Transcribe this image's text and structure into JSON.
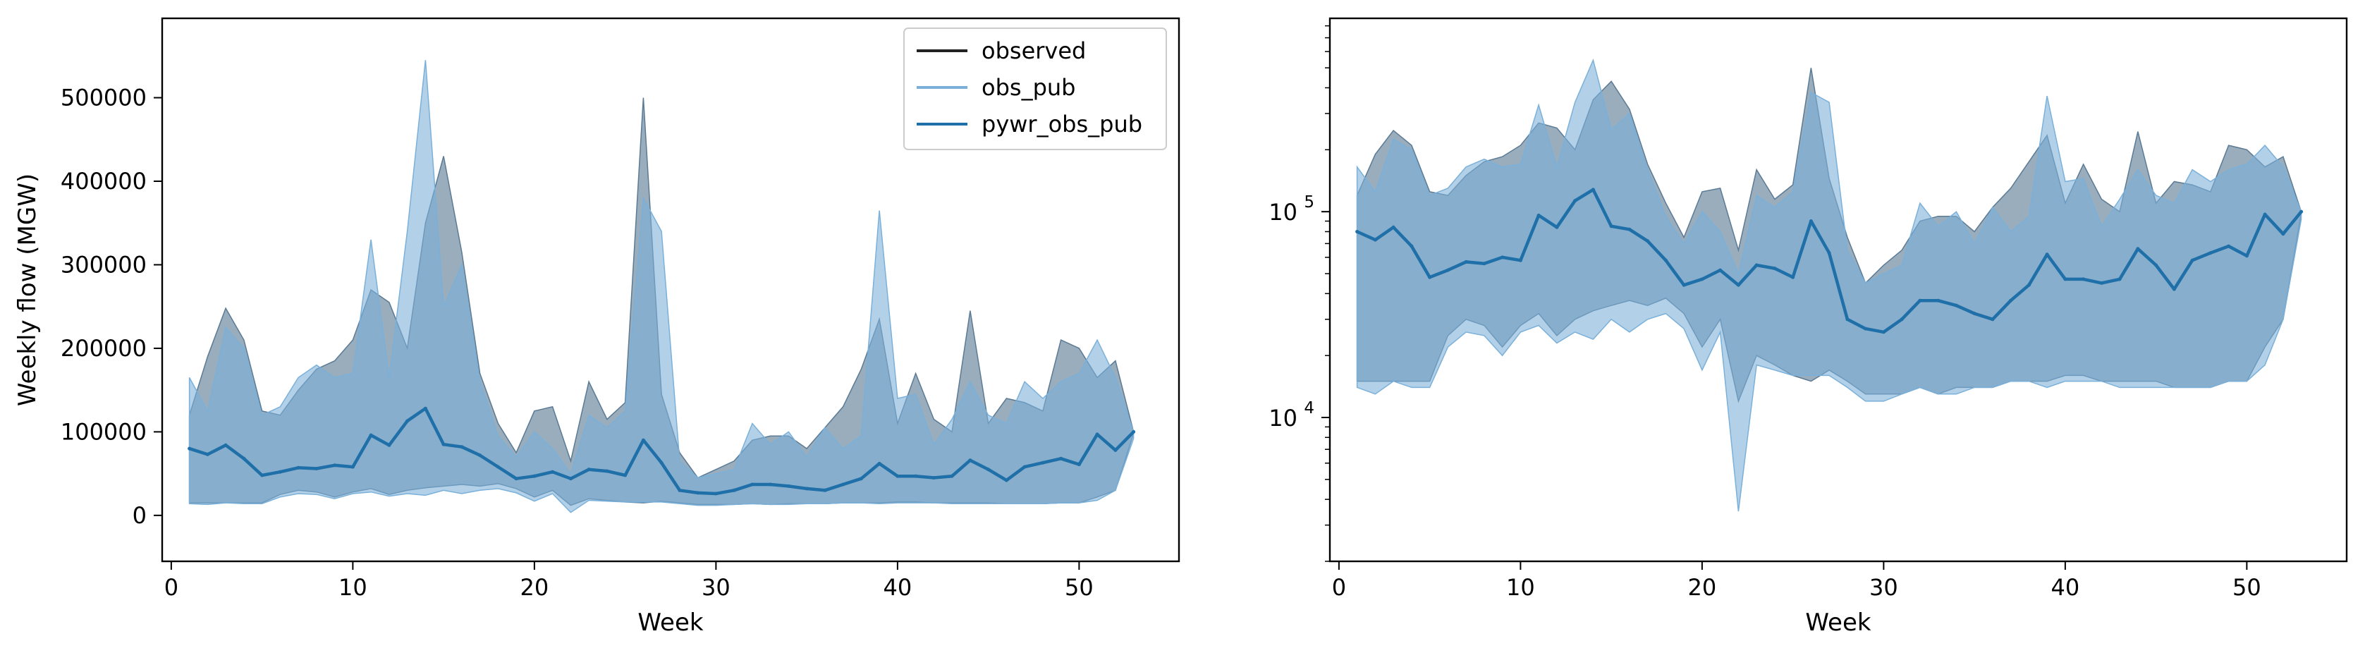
{
  "chart_data": [
    {
      "type": "area",
      "panel": "left",
      "xlabel": "Week",
      "ylabel": "Weekly flow (MGW)",
      "yscale": "linear",
      "xlim": [
        -0.5,
        55.5
      ],
      "ylim": [
        -55000,
        595000
      ],
      "xticks": [
        0,
        10,
        20,
        30,
        40,
        50
      ],
      "xtick_labels": [
        "0",
        "10",
        "20",
        "30",
        "40",
        "50"
      ],
      "yticks": [
        0,
        100000,
        200000,
        300000,
        400000,
        500000
      ],
      "ytick_labels": [
        "0",
        "100000",
        "200000",
        "300000",
        "400000",
        "500000"
      ],
      "legend": {
        "location": "upper right",
        "entries": [
          {
            "label": "observed",
            "color": "#222222"
          },
          {
            "label": "obs_pub",
            "color": "#7ab0d9"
          },
          {
            "label": "pywr_obs_pub",
            "color": "#1f6fa8"
          }
        ]
      },
      "x": [
        1,
        2,
        3,
        4,
        5,
        6,
        7,
        8,
        9,
        10,
        11,
        12,
        13,
        14,
        15,
        16,
        17,
        18,
        19,
        20,
        21,
        22,
        23,
        24,
        25,
        26,
        27,
        28,
        29,
        30,
        31,
        32,
        33,
        34,
        35,
        36,
        37,
        38,
        39,
        40,
        41,
        42,
        43,
        44,
        45,
        46,
        47,
        48,
        49,
        50,
        51,
        52,
        53
      ],
      "series": [
        {
          "name": "observed",
          "style": "range band",
          "color": "#5b7a94",
          "upper": [
            120000,
            190000,
            248000,
            210000,
            125000,
            120000,
            150000,
            175000,
            185000,
            210000,
            270000,
            255000,
            200000,
            350000,
            430000,
            315000,
            170000,
            110000,
            75000,
            125000,
            130000,
            65000,
            160000,
            115000,
            135000,
            500000,
            145000,
            75000,
            45000,
            55000,
            65000,
            90000,
            95000,
            95000,
            80000,
            105000,
            130000,
            175000,
            235000,
            110000,
            170000,
            115000,
            100000,
            245000,
            110000,
            140000,
            135000,
            125000,
            210000,
            200000,
            165000,
            185000,
            100000
          ],
          "lower": [
            15000,
            15000,
            15000,
            15000,
            15000,
            25000,
            30000,
            28000,
            22000,
            28000,
            32000,
            25000,
            30000,
            33000,
            35000,
            37000,
            35000,
            38000,
            32000,
            22000,
            30000,
            12000,
            20000,
            18000,
            16000,
            15000,
            17000,
            15000,
            13000,
            13000,
            13000,
            14000,
            13000,
            14000,
            14000,
            14000,
            15000,
            15000,
            15000,
            16000,
            16000,
            15000,
            15000,
            15000,
            15000,
            14000,
            14000,
            14000,
            15000,
            15000,
            22000,
            30000,
            98000
          ]
        },
        {
          "name": "obs_pub",
          "style": "range band",
          "color": "#7ab0d9",
          "upper": [
            165000,
            125000,
            225000,
            200000,
            120000,
            130000,
            165000,
            180000,
            165000,
            170000,
            330000,
            165000,
            340000,
            545000,
            250000,
            300000,
            160000,
            95000,
            70000,
            100000,
            80000,
            50000,
            120000,
            105000,
            125000,
            380000,
            340000,
            65000,
            45000,
            50000,
            55000,
            110000,
            85000,
            100000,
            70000,
            105000,
            80000,
            95000,
            365000,
            140000,
            145000,
            85000,
            115000,
            160000,
            120000,
            110000,
            160000,
            140000,
            160000,
            170000,
            210000,
            165000,
            100000
          ],
          "lower": [
            14000,
            13000,
            15000,
            14000,
            14000,
            22000,
            26000,
            25000,
            20000,
            26000,
            28000,
            23000,
            26000,
            24000,
            30000,
            26000,
            30000,
            32000,
            27000,
            17000,
            26000,
            3500,
            18000,
            17000,
            16000,
            16000,
            16000,
            14000,
            12000,
            12000,
            13000,
            14000,
            13000,
            13000,
            14000,
            14000,
            15000,
            15000,
            14000,
            15000,
            15000,
            15000,
            14000,
            14000,
            14000,
            14000,
            14000,
            14000,
            15000,
            15000,
            18000,
            30000,
            92000
          ]
        },
        {
          "name": "pywr_obs_pub",
          "style": "line",
          "color": "#1f6fa8",
          "values": [
            80000,
            73000,
            84000,
            68000,
            48000,
            52000,
            57000,
            56000,
            60000,
            58000,
            96000,
            84000,
            113000,
            128000,
            85000,
            82000,
            72000,
            58000,
            44000,
            47000,
            52000,
            44000,
            55000,
            53000,
            48000,
            90000,
            63000,
            30000,
            27000,
            26000,
            30000,
            37000,
            37000,
            35000,
            32000,
            30000,
            37000,
            44000,
            62000,
            47000,
            47000,
            45000,
            47000,
            66000,
            55000,
            42000,
            58000,
            63000,
            68000,
            61000,
            97000,
            78000,
            100000
          ]
        }
      ]
    },
    {
      "type": "area",
      "panel": "right",
      "xlabel": "Week",
      "ylabel": "",
      "yscale": "log",
      "xlim": [
        -0.5,
        55.5
      ],
      "ylim": [
        2000,
        870000
      ],
      "xticks": [
        0,
        10,
        20,
        30,
        40,
        50
      ],
      "xtick_labels": [
        "0",
        "10",
        "20",
        "30",
        "40",
        "50"
      ],
      "yticks": [
        10000,
        100000
      ],
      "ytick_labels": [
        {
          "base": "10",
          "exp": "4"
        },
        {
          "base": "10",
          "exp": "5"
        }
      ],
      "x": [
        1,
        2,
        3,
        4,
        5,
        6,
        7,
        8,
        9,
        10,
        11,
        12,
        13,
        14,
        15,
        16,
        17,
        18,
        19,
        20,
        21,
        22,
        23,
        24,
        25,
        26,
        27,
        28,
        29,
        30,
        31,
        32,
        33,
        34,
        35,
        36,
        37,
        38,
        39,
        40,
        41,
        42,
        43,
        44,
        45,
        46,
        47,
        48,
        49,
        50,
        51,
        52,
        53
      ],
      "series": [
        {
          "name": "observed",
          "style": "range band",
          "color": "#5b7a94",
          "upper": [
            120000,
            190000,
            248000,
            210000,
            125000,
            120000,
            150000,
            175000,
            185000,
            210000,
            270000,
            255000,
            200000,
            350000,
            430000,
            315000,
            170000,
            110000,
            75000,
            125000,
            130000,
            65000,
            160000,
            115000,
            135000,
            500000,
            145000,
            75000,
            45000,
            55000,
            65000,
            90000,
            95000,
            95000,
            80000,
            105000,
            130000,
            175000,
            235000,
            110000,
            170000,
            115000,
            100000,
            245000,
            110000,
            140000,
            135000,
            125000,
            210000,
            200000,
            165000,
            185000,
            100000
          ],
          "lower": [
            15000,
            15000,
            15000,
            15000,
            15000,
            25000,
            30000,
            28000,
            22000,
            28000,
            32000,
            25000,
            30000,
            33000,
            35000,
            37000,
            35000,
            38000,
            32000,
            22000,
            30000,
            12000,
            20000,
            18000,
            16000,
            15000,
            17000,
            15000,
            13000,
            13000,
            13000,
            14000,
            13000,
            14000,
            14000,
            14000,
            15000,
            15000,
            15000,
            16000,
            16000,
            15000,
            15000,
            15000,
            15000,
            14000,
            14000,
            14000,
            15000,
            15000,
            22000,
            30000,
            98000
          ]
        },
        {
          "name": "obs_pub",
          "style": "range band",
          "color": "#7ab0d9",
          "upper": [
            165000,
            125000,
            225000,
            200000,
            120000,
            130000,
            165000,
            180000,
            165000,
            170000,
            330000,
            165000,
            340000,
            545000,
            250000,
            300000,
            160000,
            95000,
            70000,
            100000,
            80000,
            50000,
            120000,
            105000,
            125000,
            380000,
            340000,
            65000,
            45000,
            50000,
            55000,
            110000,
            85000,
            100000,
            70000,
            105000,
            80000,
            95000,
            365000,
            140000,
            145000,
            85000,
            115000,
            160000,
            120000,
            110000,
            160000,
            140000,
            160000,
            170000,
            210000,
            165000,
            100000
          ],
          "lower": [
            14000,
            13000,
            15000,
            14000,
            14000,
            22000,
            26000,
            25000,
            20000,
            26000,
            28000,
            23000,
            26000,
            24000,
            30000,
            26000,
            30000,
            32000,
            27000,
            17000,
            26000,
            3500,
            18000,
            17000,
            16000,
            16000,
            16000,
            14000,
            12000,
            12000,
            13000,
            14000,
            13000,
            13000,
            14000,
            14000,
            15000,
            15000,
            14000,
            15000,
            15000,
            15000,
            14000,
            14000,
            14000,
            14000,
            14000,
            14000,
            15000,
            15000,
            18000,
            30000,
            92000
          ]
        },
        {
          "name": "pywr_obs_pub",
          "style": "line",
          "color": "#1f6fa8",
          "values": [
            80000,
            73000,
            84000,
            68000,
            48000,
            52000,
            57000,
            56000,
            60000,
            58000,
            96000,
            84000,
            113000,
            128000,
            85000,
            82000,
            72000,
            58000,
            44000,
            47000,
            52000,
            44000,
            55000,
            53000,
            48000,
            90000,
            63000,
            30000,
            27000,
            26000,
            30000,
            37000,
            37000,
            35000,
            32000,
            30000,
            37000,
            44000,
            62000,
            47000,
            47000,
            45000,
            47000,
            66000,
            55000,
            42000,
            58000,
            63000,
            68000,
            61000,
            97000,
            78000,
            100000
          ]
        }
      ]
    }
  ]
}
